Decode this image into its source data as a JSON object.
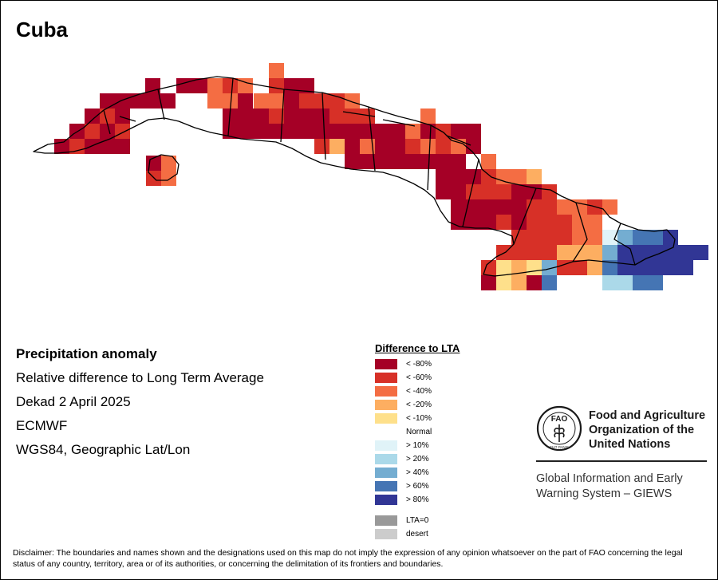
{
  "map": {
    "title": "Cuba",
    "info": {
      "line1": "Precipitation anomaly",
      "line2": "Relative difference to Long Term Average",
      "line3": "Dekad 2 April 2025",
      "line4": "ECMWF",
      "line5": "WGS84, Geographic Lat/Lon"
    },
    "legend": {
      "title": "Difference to LTA",
      "items": [
        {
          "label": "< -80%",
          "color": "#a50026"
        },
        {
          "label": "< -60%",
          "color": "#d73027"
        },
        {
          "label": "< -40%",
          "color": "#f46d43"
        },
        {
          "label": "< -20%",
          "color": "#fdae61"
        },
        {
          "label": "< -10%",
          "color": "#fee08b"
        },
        {
          "label": "Normal",
          "color": "#ffffff"
        },
        {
          "label": "> 10%",
          "color": "#e0f3f8"
        },
        {
          "label": "> 20%",
          "color": "#abd9e9"
        },
        {
          "label": "> 40%",
          "color": "#74add1"
        },
        {
          "label": "> 60%",
          "color": "#4575b4"
        },
        {
          "label": "> 80%",
          "color": "#313695"
        },
        {
          "label": "LTA=0",
          "color": "#999999"
        },
        {
          "label": "desert",
          "color": "#cccccc"
        }
      ]
    },
    "organization": {
      "name_line1": "Food and Agriculture",
      "name_line2": "Organization of the",
      "name_line3": "United Nations",
      "logo_text": "FAO",
      "logo_motto": "FIAT PANIS",
      "system_line1": "Global Information and Early",
      "system_line2": "Warning System – GIEWS"
    },
    "disclaimer": "Disclaimer: The boundaries and names shown and the designations used on this map do not imply the expression of any opinion whatsoever on the part of FAO concerning the legal status of any country, territory, area or of its authorities, or concerning the delimitation of its frontiers and boundaries."
  }
}
